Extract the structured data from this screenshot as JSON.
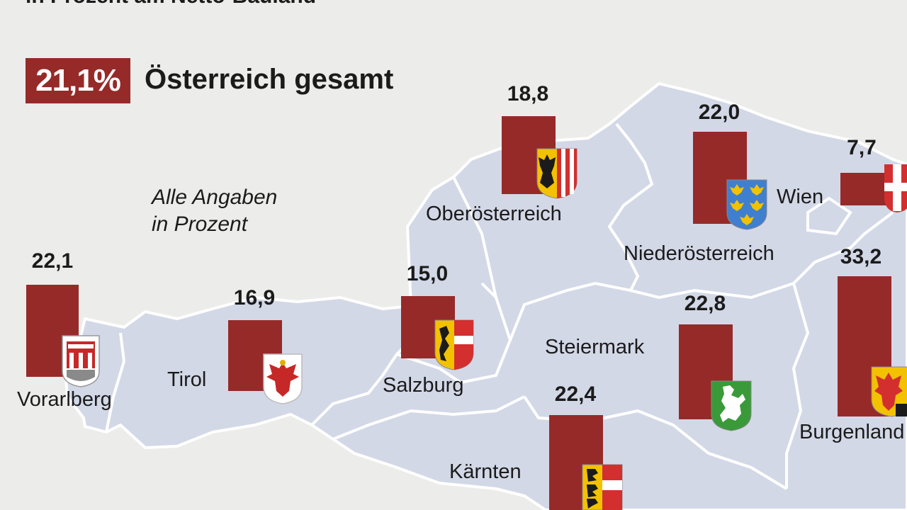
{
  "header": {
    "subtitle": "in Prozent am Netto-Bauland",
    "total_value": "21,1%",
    "total_label": "Österreich gesamt",
    "note_line1": "Alle Angaben",
    "note_line2": "in Prozent"
  },
  "colors": {
    "bar": "#962a29",
    "map_fill": "#d3d8e7",
    "map_border": "#ffffff",
    "background": "#ececeb"
  },
  "regions": [
    {
      "key": "vorarlberg",
      "name": "Vorarlberg",
      "value": "22,1",
      "crest": "vorarlberg-crest-icon"
    },
    {
      "key": "tirol",
      "name": "Tirol",
      "value": "16,9",
      "crest": "tirol-eagle-crest-icon"
    },
    {
      "key": "salzburg",
      "name": "Salzburg",
      "value": "15,0",
      "crest": "salzburg-lion-crest-icon"
    },
    {
      "key": "oberoesterreich",
      "name": "Oberösterreich",
      "value": "18,8",
      "crest": "oberoesterreich-eagle-crest-icon"
    },
    {
      "key": "niederoesterreich",
      "name": "Niederösterreich",
      "value": "22,0",
      "crest": "niederoesterreich-eagles-crest-icon"
    },
    {
      "key": "wien",
      "name": "Wien",
      "value": "7,7",
      "crest": "wien-cross-crest-icon"
    },
    {
      "key": "steiermark",
      "name": "Steiermark",
      "value": "22,8",
      "crest": "steiermark-panther-crest-icon"
    },
    {
      "key": "kaernten",
      "name": "Kärnten",
      "value": "22,4",
      "crest": "kaernten-lions-crest-icon"
    },
    {
      "key": "burgenland",
      "name": "Burgenland",
      "value": "33,2",
      "crest": "burgenland-eagle-crest-icon"
    }
  ]
}
